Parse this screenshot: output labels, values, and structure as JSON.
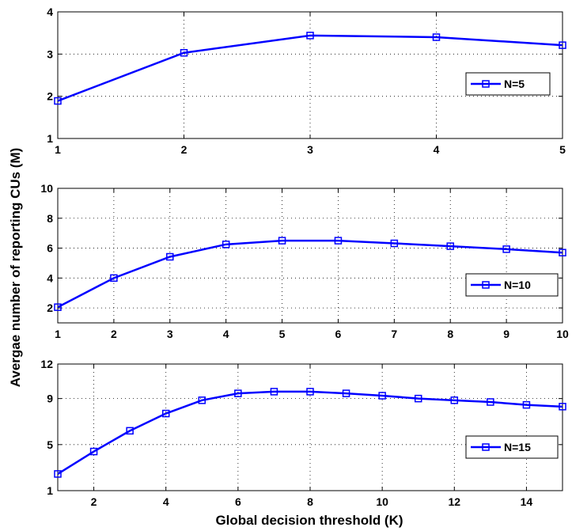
{
  "figure": {
    "ylabel": "Avergae number of reporting CUs (M)",
    "xlabel": "Global decision threshold (K)"
  },
  "series_color": "#0000ff",
  "chart_data": [
    {
      "type": "line",
      "x": [
        1,
        2,
        3,
        4,
        5
      ],
      "series": [
        {
          "name": "N=5",
          "values": [
            1.89,
            3.03,
            3.44,
            3.4,
            3.21
          ]
        }
      ],
      "xlim": [
        1,
        5
      ],
      "ylim": [
        1,
        4
      ],
      "xticks": [
        1,
        2,
        3,
        4,
        5
      ],
      "yticks": [
        1,
        2,
        3,
        4
      ],
      "grid": true,
      "legend": "right"
    },
    {
      "type": "line",
      "x": [
        1,
        2,
        3,
        4,
        5,
        6,
        7,
        8,
        9,
        10
      ],
      "series": [
        {
          "name": "N=10",
          "values": [
            2.05,
            4.0,
            5.42,
            6.25,
            6.5,
            6.5,
            6.32,
            6.13,
            5.93,
            5.7
          ]
        }
      ],
      "xlim": [
        1,
        10
      ],
      "ylim": [
        1,
        10
      ],
      "xticks": [
        1,
        2,
        3,
        4,
        5,
        6,
        7,
        8,
        9,
        10
      ],
      "yticks": [
        2,
        4,
        6,
        8,
        10
      ],
      "grid": true,
      "legend": "bottom-right"
    },
    {
      "type": "line",
      "x": [
        1,
        2,
        3,
        4,
        5,
        6,
        7,
        8,
        9,
        10,
        11,
        12,
        13,
        14,
        15
      ],
      "series": [
        {
          "name": "N=15",
          "values": [
            2.45,
            4.4,
            6.2,
            7.7,
            8.85,
            9.45,
            9.6,
            9.6,
            9.45,
            9.25,
            9.0,
            8.85,
            8.7,
            8.45,
            8.3
          ]
        }
      ],
      "xlim": [
        1,
        15
      ],
      "ylim": [
        1,
        12
      ],
      "xticks": [
        2,
        4,
        6,
        8,
        10,
        12,
        14
      ],
      "yticks": [
        1,
        5,
        9,
        12
      ],
      "grid": true,
      "legend": "bottom-right"
    }
  ]
}
